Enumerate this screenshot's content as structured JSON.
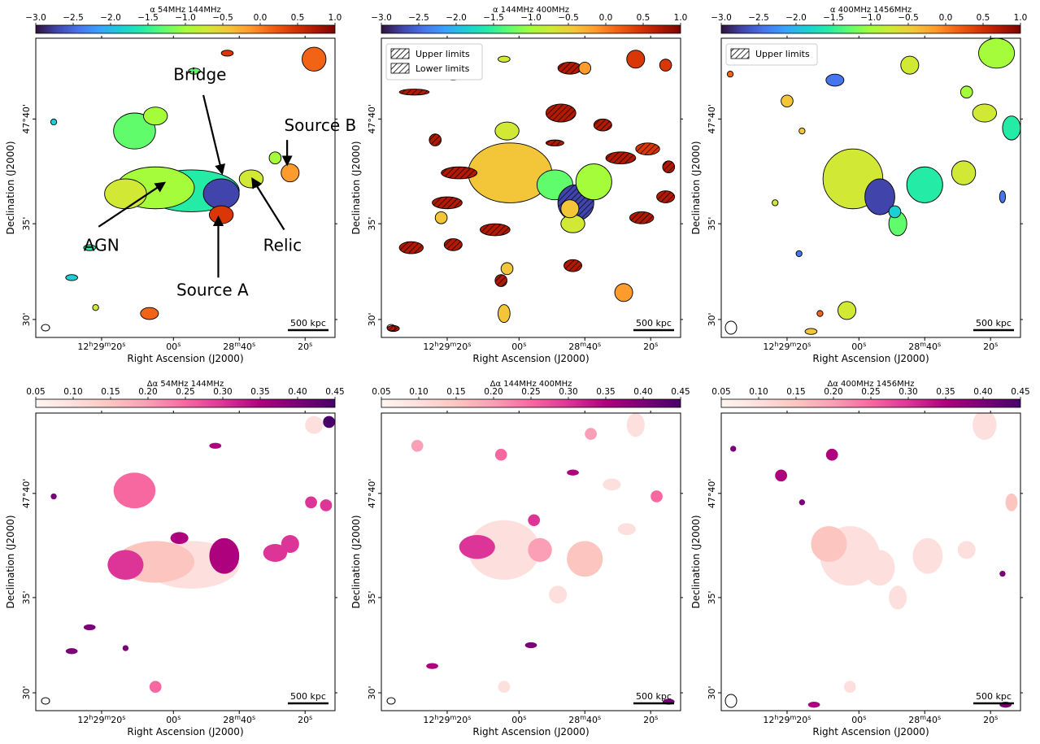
{
  "figure": {
    "scale_bar_label": "500 kpc",
    "xlabel": "Right Ascension (J2000)",
    "ylabel": "Declination (J2000)",
    "x_ticks": [
      "12h29m20s",
      "00s",
      "28m40s",
      "20s"
    ],
    "y_ticks": [
      "47°40'",
      "35'",
      "30'"
    ],
    "colormaps": {
      "spectral_index": [
        "#30123b",
        "#4145ab",
        "#4675ed",
        "#39a2fc",
        "#1bcfd4",
        "#24eca6",
        "#61fc6c",
        "#a4fc3b",
        "#d1e834",
        "#f3c63a",
        "#fe9b2d",
        "#f36315",
        "#d93806",
        "#b11901",
        "#7a0403"
      ],
      "uncertainty": [
        "#fff5f0",
        "#fde0dd",
        "#fcc5c0",
        "#fa9fb5",
        "#f768a1",
        "#dd3497",
        "#ae017e",
        "#7a0177",
        "#49006a"
      ]
    }
  },
  "chart_data": [
    {
      "type": "heatmap",
      "panel": "top-left",
      "quantity": "spectral index",
      "colorbar_label": "α 54MHz 144MHz",
      "colorbar_range": [
        -3.0,
        1.0
      ],
      "colorbar_ticks": [
        "−3.0",
        "−2.5",
        "−2.0",
        "−1.5",
        "−1.0",
        "−0.5",
        "0.0",
        "0.5",
        "1.0"
      ],
      "annotations": [
        "Bridge",
        "Source B",
        "AGN",
        "Relic",
        "Source A"
      ]
    },
    {
      "type": "heatmap",
      "panel": "top-middle",
      "quantity": "spectral index",
      "colorbar_label": "α 144MHz 400MHz",
      "colorbar_range": [
        -3.0,
        1.0
      ],
      "colorbar_ticks": [
        "−3.0",
        "−2.5",
        "−2.0",
        "−1.5",
        "−1.0",
        "−0.5",
        "0.0",
        "0.5",
        "1.0"
      ],
      "legend": [
        "Upper limits",
        "Lower limits"
      ]
    },
    {
      "type": "heatmap",
      "panel": "top-right",
      "quantity": "spectral index",
      "colorbar_label": "α 400MHz 1456MHz",
      "colorbar_range": [
        -3.0,
        1.0
      ],
      "colorbar_ticks": [
        "−3.0",
        "−2.5",
        "−2.0",
        "−1.5",
        "−1.0",
        "−0.5",
        "0.0",
        "0.5",
        "1.0"
      ],
      "legend": [
        "Upper limits"
      ]
    },
    {
      "type": "heatmap",
      "panel": "bottom-left",
      "quantity": "spectral index uncertainty",
      "colorbar_label": "Δα 54MHz 144MHz",
      "colorbar_range": [
        0.05,
        0.45
      ],
      "colorbar_ticks": [
        "0.05",
        "0.10",
        "0.15",
        "0.20",
        "0.25",
        "0.30",
        "0.35",
        "0.40",
        "0.45"
      ]
    },
    {
      "type": "heatmap",
      "panel": "bottom-middle",
      "quantity": "spectral index uncertainty",
      "colorbar_label": "Δα 144MHz 400MHz",
      "colorbar_range": [
        0.05,
        0.45
      ],
      "colorbar_ticks": [
        "0.05",
        "0.10",
        "0.15",
        "0.20",
        "0.25",
        "0.30",
        "0.35",
        "0.40",
        "0.45"
      ]
    },
    {
      "type": "heatmap",
      "panel": "bottom-right",
      "quantity": "spectral index uncertainty",
      "colorbar_label": "Δα 400MHz 1456MHz",
      "colorbar_range": [
        0.05,
        0.45
      ],
      "colorbar_ticks": [
        "0.05",
        "0.10",
        "0.15",
        "0.20",
        "0.25",
        "0.30",
        "0.35",
        "0.40",
        "0.45"
      ]
    }
  ]
}
